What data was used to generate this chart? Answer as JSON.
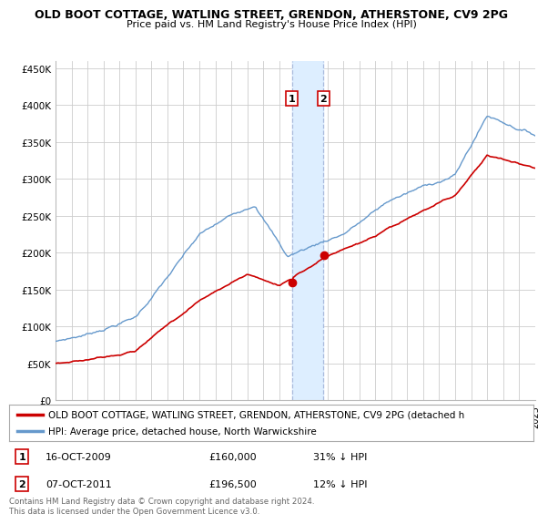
{
  "title": "OLD BOOT COTTAGE, WATLING STREET, GRENDON, ATHERSTONE, CV9 2PG",
  "subtitle": "Price paid vs. HM Land Registry's House Price Index (HPI)",
  "legend_entry1": "OLD BOOT COTTAGE, WATLING STREET, GRENDON, ATHERSTONE, CV9 2PG (detached h",
  "legend_entry2": "HPI: Average price, detached house, North Warwickshire",
  "footer": "Contains HM Land Registry data © Crown copyright and database right 2024.\nThis data is licensed under the Open Government Licence v3.0.",
  "transaction1_label": "1",
  "transaction1_date": "16-OCT-2009",
  "transaction1_price": "£160,000",
  "transaction1_hpi": "31% ↓ HPI",
  "transaction2_label": "2",
  "transaction2_date": "07-OCT-2011",
  "transaction2_price": "£196,500",
  "transaction2_hpi": "12% ↓ HPI",
  "red_color": "#cc0000",
  "blue_color": "#6699cc",
  "shading_color": "#ddeeff",
  "dashed_color": "#aabbdd",
  "background_color": "#ffffff",
  "grid_color": "#cccccc",
  "ylim": [
    0,
    460000
  ],
  "yticks": [
    0,
    50000,
    100000,
    150000,
    200000,
    250000,
    300000,
    350000,
    400000,
    450000
  ],
  "ytick_labels": [
    "£0",
    "£50K",
    "£100K",
    "£150K",
    "£200K",
    "£250K",
    "£300K",
    "£350K",
    "£400K",
    "£450K"
  ],
  "transaction1_x": 2009.79,
  "transaction2_x": 2011.76,
  "transaction1_y_red": 160000,
  "transaction2_y_red": 196500,
  "xmin": 1995,
  "xmax": 2025
}
